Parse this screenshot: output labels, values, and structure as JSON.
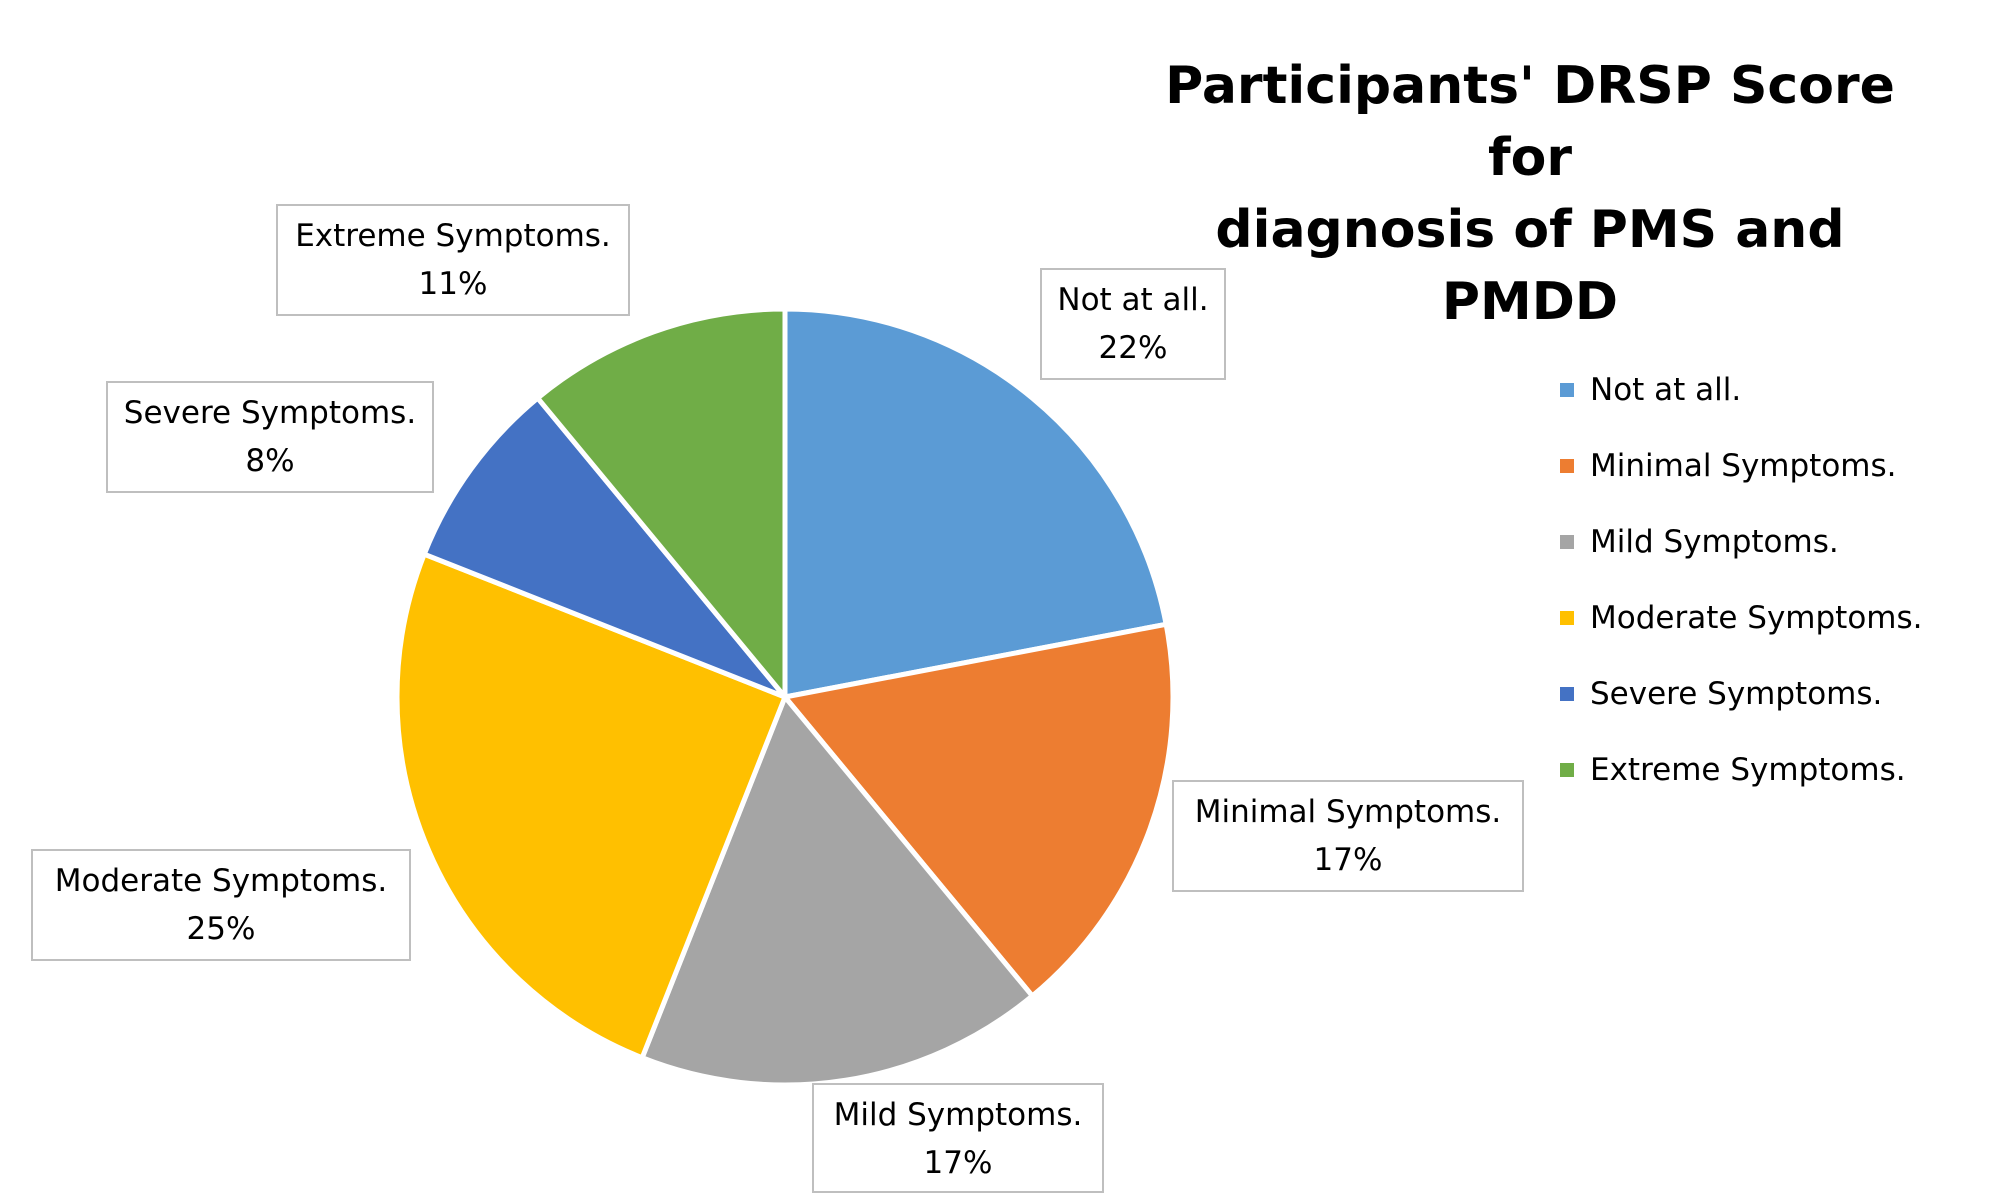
{
  "chart_data": {
    "type": "pie",
    "title_lines": [
      "Participants' DRSP Score for",
      "diagnosis of PMS and PMDD"
    ],
    "categories": [
      "Not at all.",
      "Minimal Symptoms.",
      "Mild Symptoms.",
      "Moderate Symptoms.",
      "Severe Symptoms.",
      "Extreme Symptoms."
    ],
    "values": [
      22,
      17,
      17,
      25,
      8,
      11
    ],
    "value_labels": [
      "22%",
      "17%",
      "17%",
      "25%",
      "8%",
      "11%"
    ],
    "colors": [
      "#5B9BD5",
      "#ED7D31",
      "#A5A5A5",
      "#FFC000",
      "#4472C4",
      "#70AD47"
    ],
    "legend_position": "right",
    "data_labels": "outside-callout"
  }
}
